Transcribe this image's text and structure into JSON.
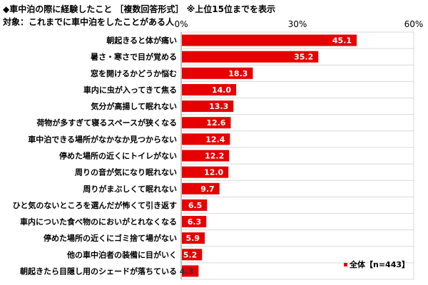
{
  "chart_data": {
    "type": "bar",
    "orientation": "horizontal",
    "title": "◆車中泊の際に経験したこと ［複数回答形式］ ※上位15位までを表示",
    "subtitle": "対象：これまでに車中泊をしたことがある人",
    "categories": [
      "朝起きると体が痛い",
      "暑さ・寒さで目が覚める",
      "窓を開けるかどうか悩む",
      "車内に虫が入ってきて焦る",
      "気分が高揚して眠れない",
      "荷物が多すぎて寝るスペースが狭くなる",
      "車中泊できる場所がなかなか見つからない",
      "停めた場所の近くにトイレがない",
      "周りの音が気になり眠れない",
      "周りがまぶしくて眠れない",
      "ひと気のないところを選んだが怖くて引き返す",
      "車内についた食べ物のにおいがとれなくなる",
      "停めた場所の近くにゴミ捨て場がない",
      "他の車中泊者の装備に目がいく",
      "朝起きたら目隠し用のシェードが落ちている"
    ],
    "series": [
      {
        "name": "全体【n=443】",
        "values": [
          45.1,
          35.2,
          18.3,
          14.0,
          13.3,
          12.6,
          12.4,
          12.2,
          12.0,
          9.7,
          6.5,
          6.3,
          5.9,
          5.2,
          4.3
        ],
        "color": "#e60000"
      }
    ],
    "xlim": [
      0,
      60
    ],
    "ticks": [
      "0%",
      "30%",
      "60%"
    ],
    "tick_values": [
      0,
      30,
      60
    ],
    "legend": "bottom-right"
  }
}
